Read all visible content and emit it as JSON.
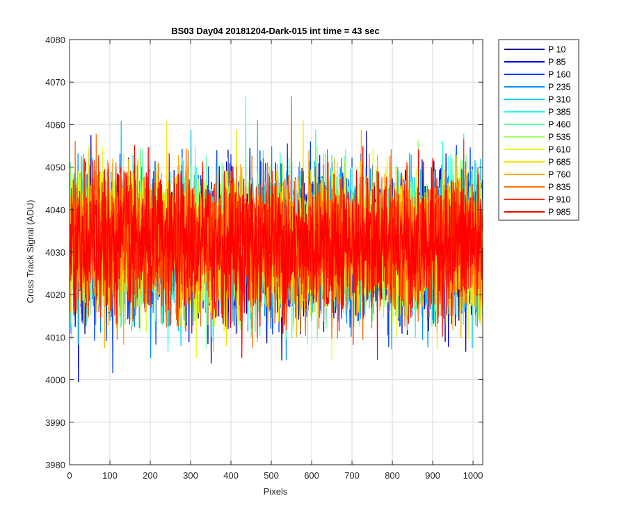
{
  "chart_data": {
    "type": "line",
    "title": "BS03 Day04 20181204-Dark-015 int time = 43 sec",
    "xlabel": "Pixels",
    "ylabel": "Cross Track Signal (ADU)",
    "xlim": [
      0,
      1024
    ],
    "ylim": [
      3980,
      4080
    ],
    "xticks": [
      0,
      100,
      200,
      300,
      400,
      500,
      600,
      700,
      800,
      900,
      1000
    ],
    "yticks": [
      3980,
      3990,
      4000,
      4010,
      4020,
      4030,
      4040,
      4050,
      4060,
      4070,
      4080
    ],
    "grid": true,
    "legend_position": "outside-top-right",
    "n_points": 1024,
    "series": [
      {
        "name": "P 10",
        "color": "#00008f",
        "mean": 4032,
        "spread": 9
      },
      {
        "name": "P 85",
        "color": "#0000e0",
        "mean": 4032,
        "spread": 9
      },
      {
        "name": "P 160",
        "color": "#0040ff",
        "mean": 4032,
        "spread": 9
      },
      {
        "name": "P 235",
        "color": "#0090ff",
        "mean": 4032,
        "spread": 9
      },
      {
        "name": "P 310",
        "color": "#00d0ff",
        "mean": 4032,
        "spread": 9
      },
      {
        "name": "P 385",
        "color": "#20ffdf",
        "mean": 4032,
        "spread": 9
      },
      {
        "name": "P 460",
        "color": "#60ffa0",
        "mean": 4032,
        "spread": 9
      },
      {
        "name": "P 535",
        "color": "#9fff60",
        "mean": 4032,
        "spread": 9
      },
      {
        "name": "P 610",
        "color": "#dfff20",
        "mean": 4032,
        "spread": 9
      },
      {
        "name": "P 685",
        "color": "#ffe000",
        "mean": 4032,
        "spread": 9
      },
      {
        "name": "P 760",
        "color": "#ffb000",
        "mean": 4032,
        "spread": 9
      },
      {
        "name": "P 835",
        "color": "#ff7000",
        "mean": 4032,
        "spread": 9
      },
      {
        "name": "P 910",
        "color": "#ff3000",
        "mean": 4032,
        "spread": 9
      },
      {
        "name": "P 985",
        "color": "#ff0000",
        "mean": 4032,
        "spread": 9
      }
    ]
  }
}
